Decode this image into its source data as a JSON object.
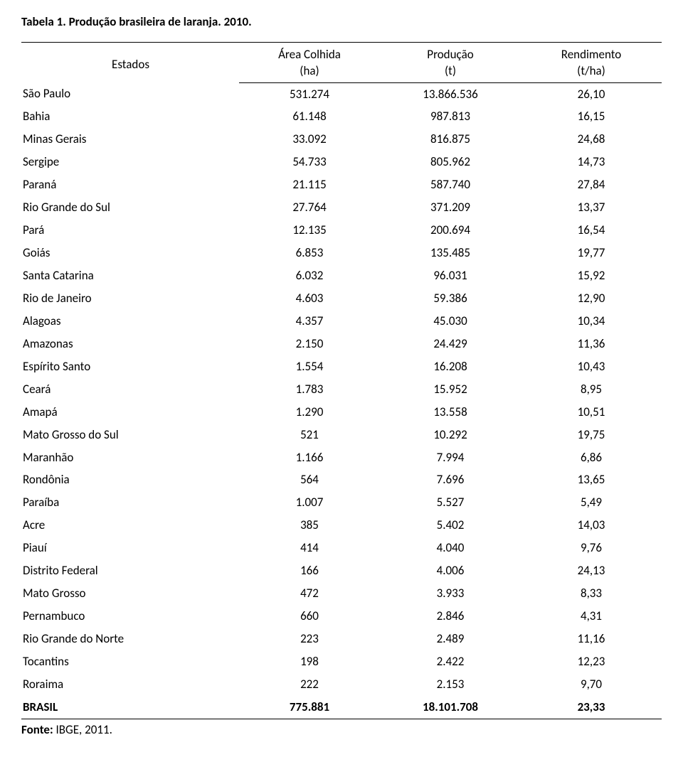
{
  "title": "Tabela 1. Produção brasileira de laranja. 2010.",
  "columns": {
    "state": "Estados",
    "area_h1": "Área Colhida",
    "area_h2": "(ha)",
    "prod_h1": "Produção",
    "prod_h2": "(t)",
    "rend_h1": "Rendimento",
    "rend_h2": "(t/ha)"
  },
  "rows": [
    {
      "state": "São Paulo",
      "area": "531.274",
      "prod": "13.866.536",
      "rend": "26,10"
    },
    {
      "state": "Bahia",
      "area": "61.148",
      "prod": "987.813",
      "rend": "16,15"
    },
    {
      "state": "Minas Gerais",
      "area": "33.092",
      "prod": "816.875",
      "rend": "24,68"
    },
    {
      "state": "Sergipe",
      "area": "54.733",
      "prod": "805.962",
      "rend": "14,73"
    },
    {
      "state": "Paraná",
      "area": "21.115",
      "prod": "587.740",
      "rend": "27,84"
    },
    {
      "state": "Rio Grande do Sul",
      "area": "27.764",
      "prod": "371.209",
      "rend": "13,37"
    },
    {
      "state": "Pará",
      "area": "12.135",
      "prod": "200.694",
      "rend": "16,54"
    },
    {
      "state": "Goiás",
      "area": "6.853",
      "prod": "135.485",
      "rend": "19,77"
    },
    {
      "state": "Santa Catarina",
      "area": "6.032",
      "prod": "96.031",
      "rend": "15,92"
    },
    {
      "state": "Rio de Janeiro",
      "area": "4.603",
      "prod": "59.386",
      "rend": "12,90"
    },
    {
      "state": "Alagoas",
      "area": "4.357",
      "prod": "45.030",
      "rend": "10,34"
    },
    {
      "state": "Amazonas",
      "area": "2.150",
      "prod": "24.429",
      "rend": "11,36"
    },
    {
      "state": "Espírito Santo",
      "area": "1.554",
      "prod": "16.208",
      "rend": "10,43"
    },
    {
      "state": "Ceará",
      "area": "1.783",
      "prod": "15.952",
      "rend": "8,95"
    },
    {
      "state": "Amapá",
      "area": "1.290",
      "prod": "13.558",
      "rend": "10,51"
    },
    {
      "state": "Mato Grosso do Sul",
      "area": "521",
      "prod": "10.292",
      "rend": "19,75"
    },
    {
      "state": "Maranhão",
      "area": "1.166",
      "prod": "7.994",
      "rend": "6,86"
    },
    {
      "state": "Rondônia",
      "area": "564",
      "prod": "7.696",
      "rend": "13,65"
    },
    {
      "state": "Paraíba",
      "area": "1.007",
      "prod": "5.527",
      "rend": "5,49"
    },
    {
      "state": "Acre",
      "area": "385",
      "prod": "5.402",
      "rend": "14,03"
    },
    {
      "state": "Piauí",
      "area": "414",
      "prod": "4.040",
      "rend": "9,76"
    },
    {
      "state": "Distrito Federal",
      "area": "166",
      "prod": "4.006",
      "rend": "24,13"
    },
    {
      "state": "Mato Grosso",
      "area": "472",
      "prod": "3.933",
      "rend": "8,33"
    },
    {
      "state": "Pernambuco",
      "area": "660",
      "prod": "2.846",
      "rend": "4,31"
    },
    {
      "state": "Rio Grande do Norte",
      "area": "223",
      "prod": "2.489",
      "rend": "11,16"
    },
    {
      "state": "Tocantins",
      "area": "198",
      "prod": "2.422",
      "rend": "12,23"
    },
    {
      "state": "Roraima",
      "area": "222",
      "prod": "2.153",
      "rend": "9,70"
    }
  ],
  "total": {
    "state": "BRASIL",
    "area": "775.881",
    "prod": "18.101.708",
    "rend": "23,33"
  },
  "source_label": "Fonte:",
  "source_text": " IBGE, 2011."
}
